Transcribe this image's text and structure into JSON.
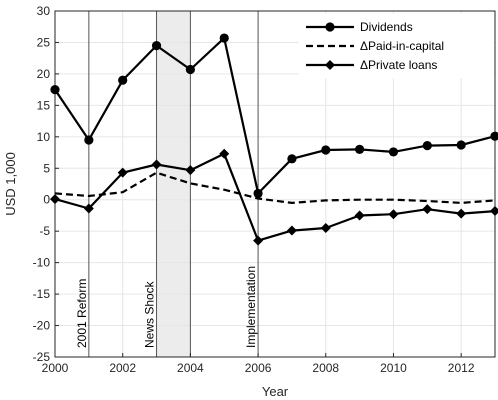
{
  "chart_data": {
    "type": "line",
    "xlabel": "Year",
    "ylabel": "USD 1,000",
    "xlim": [
      2000,
      2013
    ],
    "ylim": [
      -25,
      30
    ],
    "xticks": [
      2000,
      2002,
      2004,
      2006,
      2008,
      2010,
      2012
    ],
    "xtick_labels": [
      "2000",
      "2002",
      "2004",
      "2006",
      "2008",
      "2010",
      "2012"
    ],
    "yticks": [
      -25,
      -20,
      -15,
      -10,
      -5,
      0,
      5,
      10,
      15,
      20,
      25,
      30
    ],
    "ytick_labels": [
      "-25",
      "-20",
      "-15",
      "-10",
      "-5",
      "0",
      "5",
      "10",
      "15",
      "20",
      "25",
      "30"
    ],
    "grid": true,
    "legend_position": "top-right",
    "x": [
      2000,
      2001,
      2002,
      2003,
      2004,
      2005,
      2006,
      2007,
      2008,
      2009,
      2010,
      2011,
      2012,
      2013
    ],
    "series": [
      {
        "name": "Dividends",
        "style": "solid-circle",
        "values": [
          17.5,
          9.5,
          19.0,
          24.5,
          20.7,
          25.7,
          1.0,
          6.5,
          7.9,
          8.0,
          7.6,
          8.6,
          8.7,
          10.1
        ]
      },
      {
        "name": "ΔPaid-in-capital",
        "style": "dashed",
        "values": [
          1.0,
          0.6,
          1.2,
          4.3,
          2.6,
          1.6,
          0.2,
          -0.5,
          -0.1,
          0.0,
          0.0,
          -0.2,
          -0.5,
          -0.1
        ]
      },
      {
        "name": "ΔPrivate loans",
        "style": "solid-diamond",
        "values": [
          0.1,
          -1.4,
          4.3,
          5.6,
          4.7,
          7.3,
          -6.5,
          -4.9,
          -4.5,
          -2.5,
          -2.3,
          -1.5,
          -2.2,
          -1.8
        ]
      }
    ],
    "vertical_lines": [
      {
        "x": 2001,
        "label": "2001 Reform"
      },
      {
        "x": 2003,
        "label": "News Shock"
      },
      {
        "x": 2004,
        "label": ""
      },
      {
        "x": 2006,
        "label": "Implementation"
      }
    ],
    "shaded_region": {
      "from": 2003,
      "to": 2004
    },
    "colors": {
      "line": "#000000",
      "grid": "#e6e6e6",
      "axis": "#262626",
      "shade": "#ececec",
      "vline": "#555555"
    }
  }
}
